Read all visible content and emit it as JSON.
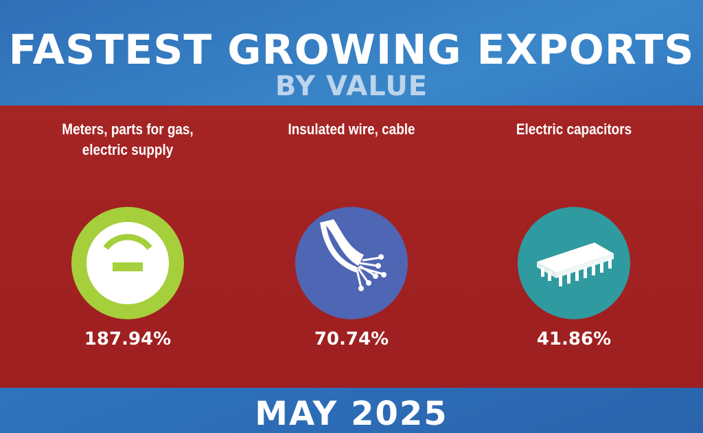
{
  "header": {
    "title": "FASTEST GROWING EXPORTS",
    "subtitle": "BY VALUE"
  },
  "items": [
    {
      "label_line1": "Meters, parts for gas,",
      "label_line2": "electric supply",
      "value": "187.94%",
      "icon": "meter-gauge-icon",
      "color": "#a6cf3c"
    },
    {
      "label_line1": "Insulated wire, cable",
      "label_line2": "",
      "value": "70.74%",
      "icon": "fiber-optic-cable-icon",
      "color": "#4f66b4"
    },
    {
      "label_line1": "Electric capacitors",
      "label_line2": "",
      "value": "41.86%",
      "icon": "microchip-icon",
      "color": "#2f9aa0"
    }
  ],
  "footer": {
    "date": "MAY 2025"
  },
  "colors": {
    "background_blue": "#3a86c9",
    "band_red": "#a32223",
    "subtitle_light_blue": "#bcd4ec"
  }
}
